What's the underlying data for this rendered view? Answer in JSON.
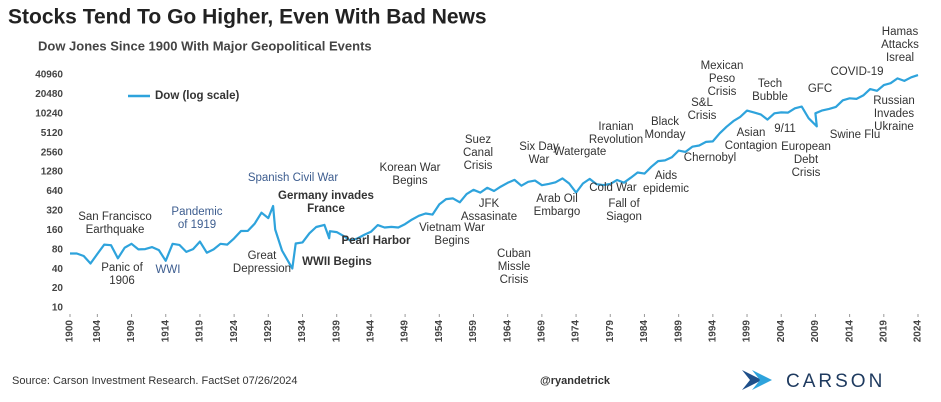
{
  "chart_data": {
    "type": "line",
    "title": "Stocks Tend To Go Higher, Even With Bad News",
    "subtitle": "Dow Jones Since 1900 With Major Geopolitical Events",
    "series_name": "Dow (log scale)",
    "color": "#2ea3dc",
    "log_scale": true,
    "grid": false,
    "legend": "upper left",
    "x": [
      1900,
      1901,
      1902,
      1903,
      1904,
      1905,
      1906,
      1907,
      1908,
      1909,
      1910,
      1911,
      1912,
      1913,
      1914,
      1915,
      1916,
      1917,
      1918,
      1919,
      1920,
      1921,
      1922,
      1923,
      1924,
      1925,
      1926,
      1927,
      1928,
      1929,
      1929.7,
      1930,
      1931,
      1932.5,
      1933,
      1934,
      1935,
      1936,
      1937.2,
      1937.9,
      1938,
      1939,
      1940,
      1941,
      1942,
      1943,
      1944,
      1945,
      1946,
      1947,
      1948,
      1949,
      1950,
      1951,
      1952,
      1953,
      1954,
      1955,
      1956,
      1957,
      1958,
      1959,
      1960,
      1961,
      1962,
      1963,
      1964,
      1965,
      1966,
      1967,
      1968,
      1969,
      1970,
      1971,
      1972,
      1973,
      1974,
      1975,
      1976,
      1977,
      1978,
      1979,
      1980,
      1981,
      1982,
      1983,
      1984,
      1985,
      1986,
      1987,
      1988,
      1989,
      1990,
      1991,
      1992,
      1993,
      1994,
      1995,
      1996,
      1997,
      1998,
      1999,
      2000,
      2001,
      2002,
      2003,
      2004,
      2005,
      2006,
      2007,
      2008,
      2009.2,
      2009,
      2010,
      2011,
      2012,
      2013,
      2014,
      2015,
      2016,
      2017,
      2018,
      2019,
      2020,
      2021,
      2022,
      2023,
      2024
    ],
    "values": [
      70,
      70,
      64,
      49,
      69,
      96,
      94,
      59,
      86,
      99,
      81,
      82,
      88,
      79,
      54,
      99,
      95,
      74,
      82,
      107,
      72,
      81,
      99,
      96,
      120,
      156,
      157,
      202,
      300,
      248,
      381,
      165,
      78,
      41,
      100,
      104,
      144,
      180,
      194,
      121,
      155,
      150,
      131,
      111,
      119,
      136,
      152,
      193,
      177,
      181,
      177,
      200,
      235,
      269,
      292,
      281,
      404,
      488,
      500,
      436,
      584,
      679,
      616,
      731,
      652,
      763,
      874,
      969,
      786,
      905,
      944,
      800,
      839,
      890,
      1020,
      851,
      616,
      852,
      1005,
      831,
      805,
      839,
      964,
      875,
      1047,
      1259,
      1212,
      1547,
      1896,
      1939,
      2169,
      2753,
      2634,
      3169,
      3301,
      3754,
      3834,
      5117,
      6448,
      7908,
      9181,
      11497,
      10787,
      10022,
      8342,
      10454,
      10783,
      10718,
      12463,
      13265,
      8776,
      6547,
      10428,
      11578,
      12218,
      13104,
      16577,
      17823,
      17425,
      19763,
      24719,
      23327,
      28538,
      30606,
      36338,
      33147,
      37690,
      40800
    ],
    "xlim": [
      1900,
      2024
    ],
    "xticks": [
      1900,
      1904,
      1909,
      1914,
      1919,
      1924,
      1929,
      1934,
      1939,
      1944,
      1949,
      1954,
      1959,
      1964,
      1969,
      1974,
      1979,
      1984,
      1989,
      1994,
      1999,
      2004,
      2009,
      2014,
      2019,
      2024
    ],
    "ylim": [
      10,
      40960
    ],
    "yticks": [
      10,
      20,
      40,
      80,
      160,
      320,
      640,
      1280,
      2560,
      5120,
      10240,
      20480,
      40960
    ],
    "annotations": [
      {
        "lines": [
          "San Francisco",
          "Earthquake"
        ]
      },
      {
        "lines": [
          "Panic of",
          "1906"
        ]
      },
      {
        "lines": [
          "WWI"
        ],
        "color": "#3d5d8f"
      },
      {
        "lines": [
          "Pandemic",
          "of 1919"
        ],
        "color": "#3d5d8f"
      },
      {
        "lines": [
          "Spanish Civil War"
        ],
        "color": "#3d5d8f"
      },
      {
        "lines": [
          "Great",
          "Depression"
        ]
      },
      {
        "lines": [
          "Germany invades",
          "France"
        ],
        "bold": true
      },
      {
        "lines": [
          "Pearl Harbor"
        ],
        "bold": true
      },
      {
        "lines": [
          "WWII Begins"
        ],
        "bold": true
      },
      {
        "lines": [
          "Korean War",
          "Begins"
        ]
      },
      {
        "lines": [
          "Vietnam War",
          "Begins"
        ]
      },
      {
        "lines": [
          "Suez",
          "Canal",
          "Crisis"
        ]
      },
      {
        "lines": [
          "JFK",
          "Assasinate"
        ]
      },
      {
        "lines": [
          "Cuban",
          "Missle",
          "Crisis"
        ]
      },
      {
        "lines": [
          "Six Day",
          "War"
        ]
      },
      {
        "lines": [
          "Arab Oil",
          "Embargo"
        ]
      },
      {
        "lines": [
          "Watergate"
        ]
      },
      {
        "lines": [
          "Iranian",
          "Revolution"
        ]
      },
      {
        "lines": [
          "Cold War"
        ]
      },
      {
        "lines": [
          "Aids",
          "epidemic"
        ]
      },
      {
        "lines": [
          "Fall of",
          "Siagon"
        ]
      },
      {
        "lines": [
          "Black",
          "Monday"
        ]
      },
      {
        "lines": [
          "S&L",
          "Crisis"
        ]
      },
      {
        "lines": [
          "Mexican",
          "Peso",
          "Crisis"
        ]
      },
      {
        "lines": [
          "Chernobyl"
        ]
      },
      {
        "lines": [
          "Asian",
          "Contagion"
        ]
      },
      {
        "lines": [
          "Tech",
          "Bubble"
        ]
      },
      {
        "lines": [
          "9/11"
        ]
      },
      {
        "lines": [
          "European",
          "Debt",
          "Crisis"
        ]
      },
      {
        "lines": [
          "GFC"
        ]
      },
      {
        "lines": [
          "Swine Flu"
        ]
      },
      {
        "lines": [
          "COVID-19"
        ]
      },
      {
        "lines": [
          "Hamas",
          "Attacks",
          "Isreal"
        ]
      },
      {
        "lines": [
          "Russian",
          "Invades",
          "Ukraine"
        ]
      }
    ],
    "source": "Source: Carson Investment Research. FactSet 07/26/2024",
    "credit": "@ryandetrick",
    "brand": "CARSON"
  }
}
